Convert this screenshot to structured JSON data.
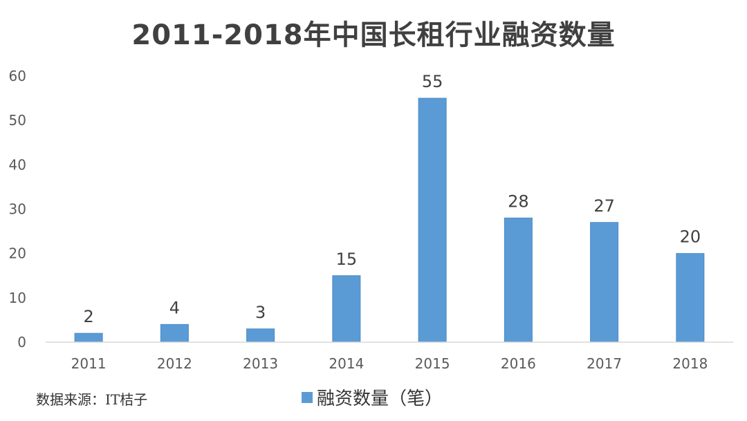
{
  "chart_data": {
    "type": "bar",
    "title": "2011-2018年中国长租行业融资数量",
    "categories": [
      "2011",
      "2012",
      "2013",
      "2014",
      "2015",
      "2016",
      "2017",
      "2018"
    ],
    "series": [
      {
        "name": "融资数量（笔）",
        "values": [
          2,
          4,
          3,
          15,
          55,
          28,
          27,
          20
        ]
      }
    ],
    "xlabel": "",
    "ylabel": "",
    "ylim": [
      0,
      60
    ],
    "yticks": [
      0,
      10,
      20,
      30,
      40,
      50,
      60
    ],
    "grid": false,
    "legend": "bottom",
    "data_labels": true
  },
  "legend_label": "融资数量（笔）",
  "source_note": "数据来源：IT桔子",
  "colors": {
    "bar": "#5b9bd5",
    "bar_edge": "#4a8ac4",
    "axis": "#d9d9d9",
    "tick_text": "#595959",
    "label_text": "#404040"
  }
}
